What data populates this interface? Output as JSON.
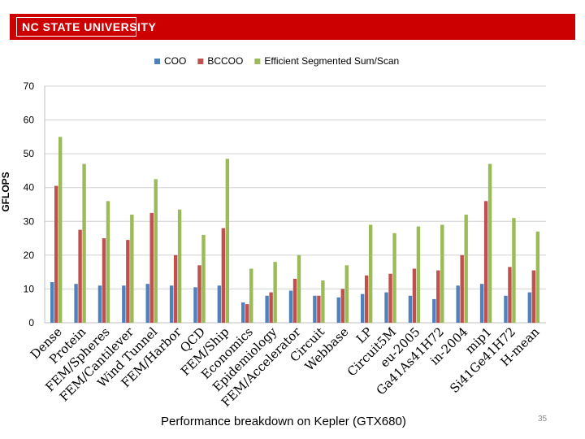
{
  "slide": {
    "logo_text": "NC STATE UNIVERSITY",
    "caption": "Performance breakdown on Kepler (GTX680)",
    "page_number": "35"
  },
  "colors": {
    "banner": "#cc0000"
  },
  "chart_data": {
    "type": "bar",
    "title": "",
    "xlabel": "",
    "ylabel": "GFLOPS",
    "ylim": [
      0,
      70
    ],
    "yticks": [
      0,
      10,
      20,
      30,
      40,
      50,
      60,
      70
    ],
    "grid": true,
    "legend_position": "top",
    "categories": [
      "Dense",
      "Protein",
      "FEM/Spheres",
      "FEM/Cantilever",
      "Wind Tunnel",
      "FEM/Harbor",
      "QCD",
      "FEM/Ship",
      "Economics",
      "Epidemiology",
      "FEM/Accelerator",
      "Circuit",
      "Webbase",
      "LP",
      "Circuit5M",
      "eu-2005",
      "Ga41As41H72",
      "in-2004",
      "mip1",
      "Si41Ge41H72",
      "H-mean"
    ],
    "series": [
      {
        "name": "COO",
        "color": "#4f81bd",
        "values": [
          12,
          11.5,
          11,
          11,
          11.5,
          11,
          10.5,
          11,
          6,
          8,
          9.5,
          8,
          7.5,
          8.5,
          9,
          8,
          7,
          11,
          11.5,
          8,
          9
        ]
      },
      {
        "name": "BCCOO",
        "color": "#c0504d",
        "values": [
          40.5,
          27.5,
          25,
          24.5,
          32.5,
          20,
          17,
          28,
          5.5,
          9,
          13,
          8,
          10,
          14,
          14.5,
          16,
          15.5,
          20,
          36,
          16.5,
          15.5
        ]
      },
      {
        "name": "Efficient Segmented Sum/Scan",
        "color": "#9bbb59",
        "values": [
          55,
          47,
          36,
          32,
          42.5,
          33.5,
          26,
          48.5,
          16,
          18,
          20,
          12.5,
          17,
          29,
          26.5,
          28.5,
          29,
          32,
          47,
          31,
          27
        ]
      }
    ]
  }
}
